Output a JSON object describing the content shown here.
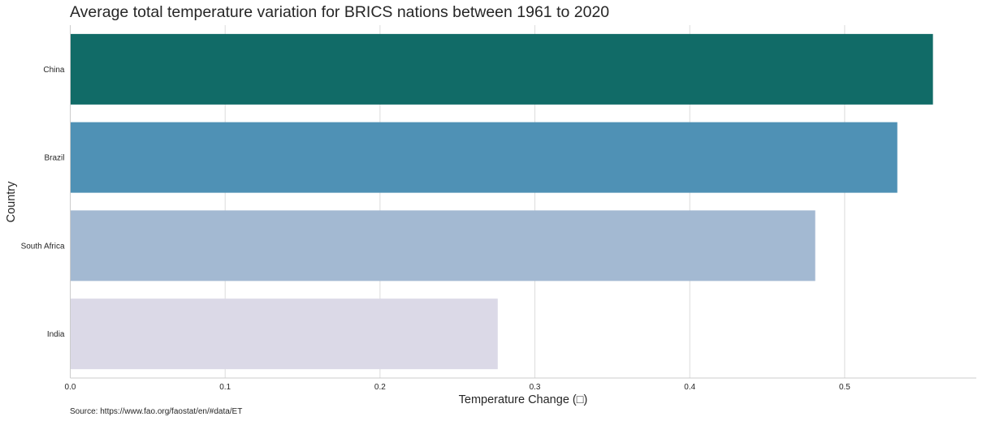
{
  "chart_data": {
    "type": "bar",
    "orientation": "horizontal",
    "title": "Average total temperature variation for BRICS nations between 1961 to 2020",
    "xlabel": "Temperature Change (□)",
    "ylabel": "Country",
    "categories": [
      "China",
      "Brazil",
      "South Africa",
      "India"
    ],
    "values": [
      0.557,
      0.534,
      0.481,
      0.276
    ],
    "colors": [
      "#116b67",
      "#4f91b5",
      "#a3b9d2",
      "#dbd9e7"
    ],
    "xlim": [
      0,
      0.585
    ],
    "xticks": [
      0.0,
      0.1,
      0.2,
      0.3,
      0.4,
      0.5
    ],
    "xtick_labels": [
      "0.0",
      "0.1",
      "0.2",
      "0.3",
      "0.4",
      "0.5"
    ],
    "grid": "vertical",
    "legend": "none"
  },
  "footer": {
    "source": "Source: https://www.fao.org/faostat/en/#data/ET"
  }
}
